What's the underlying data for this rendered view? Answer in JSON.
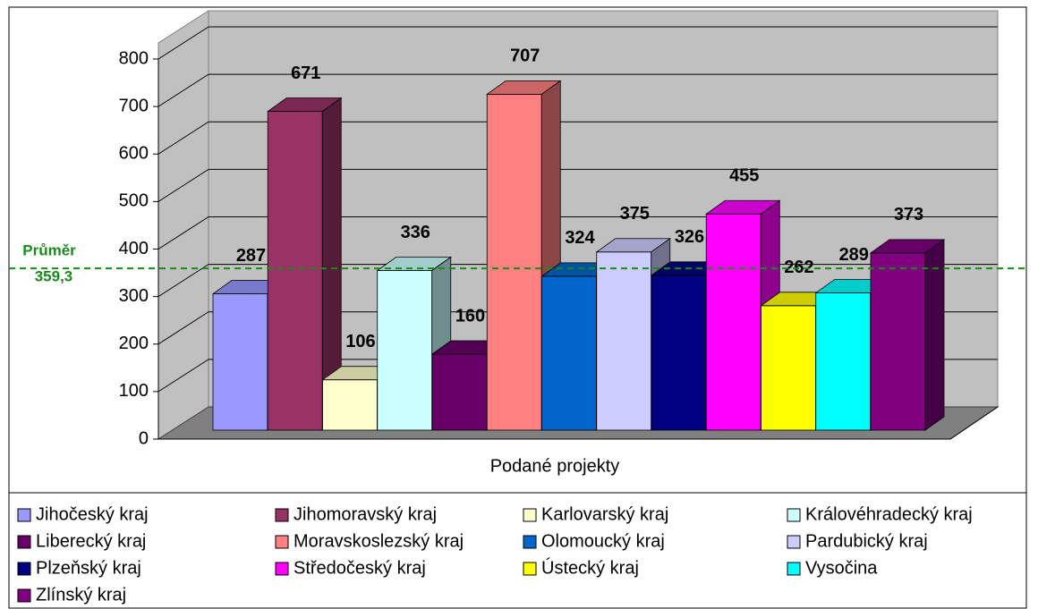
{
  "chart_data": {
    "type": "bar3d",
    "categories": [
      "Podané projekty"
    ],
    "series": [
      {
        "name": "Jihočeský kraj",
        "color": "#9999ff",
        "values": [
          287
        ]
      },
      {
        "name": "Jihomoravský kraj",
        "color": "#993366",
        "values": [
          671
        ]
      },
      {
        "name": "Karlovarský kraj",
        "color": "#ffffcc",
        "values": [
          106
        ]
      },
      {
        "name": "Královéhradecký kraj",
        "color": "#ccffff",
        "values": [
          336
        ]
      },
      {
        "name": "Liberecký kraj",
        "color": "#660066",
        "values": [
          160
        ]
      },
      {
        "name": "Moravskoslezský kraj",
        "color": "#ff8080",
        "values": [
          707
        ]
      },
      {
        "name": "Olomoucký kraj",
        "color": "#0066cc",
        "values": [
          324
        ]
      },
      {
        "name": "Pardubický kraj",
        "color": "#ccccff",
        "values": [
          375
        ]
      },
      {
        "name": "Plzeňský kraj",
        "color": "#000080",
        "values": [
          326
        ]
      },
      {
        "name": "Středočeský kraj",
        "color": "#ff00ff",
        "values": [
          455
        ]
      },
      {
        "name": "Ústecký kraj",
        "color": "#ffff00",
        "values": [
          262
        ]
      },
      {
        "name": "Vysočina",
        "color": "#00ffff",
        "values": [
          289
        ]
      },
      {
        "name": "Zlínský kraj",
        "color": "#800080",
        "values": [
          373
        ]
      }
    ],
    "ylim": [
      0,
      800
    ],
    "yticks": [
      0,
      100,
      200,
      300,
      400,
      500,
      600,
      700,
      800
    ],
    "grid": true,
    "legend": "bottom",
    "average_line": {
      "text": "Průměr",
      "value": 359.3,
      "value_label": "359,3",
      "color": "#1a8a1a"
    }
  }
}
